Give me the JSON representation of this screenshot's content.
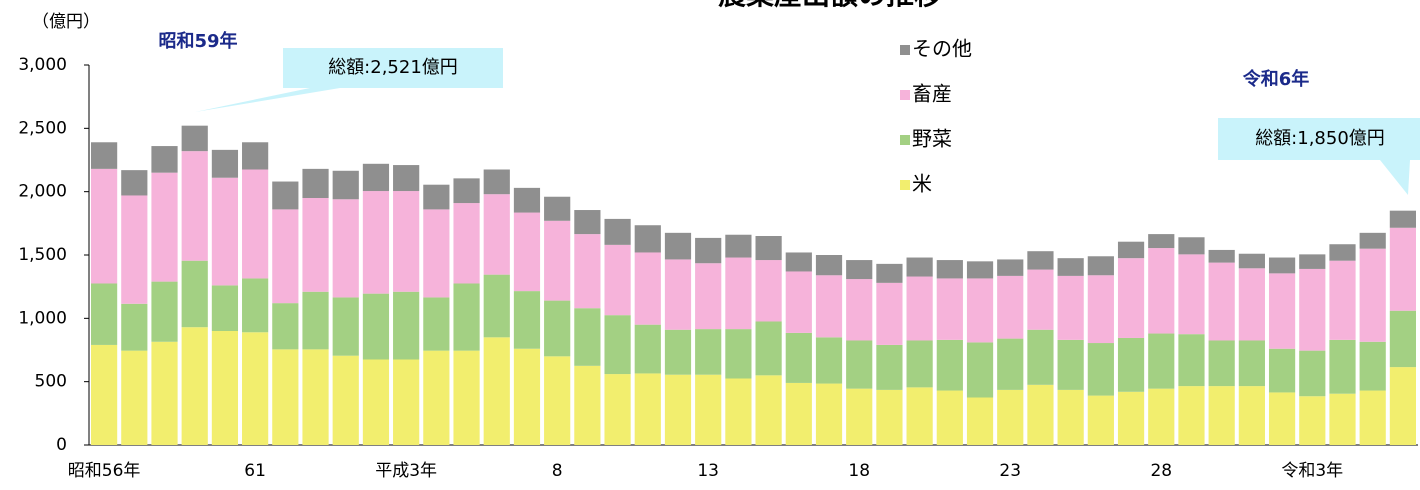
{
  "chart_data": {
    "type": "stacked_bar",
    "title": "農業産出額の推移",
    "y_label": "（億円）",
    "annotations": [
      "昭和59年",
      "総額:2,521億円",
      "令和6年",
      "総額:1,850億円"
    ],
    "categories": [
      "昭和56年",
      null,
      null,
      null,
      null,
      "61",
      null,
      null,
      null,
      null,
      "平成3年",
      null,
      null,
      null,
      null,
      "8",
      null,
      null,
      null,
      null,
      "13",
      null,
      null,
      null,
      null,
      "18",
      null,
      null,
      null,
      null,
      "23",
      null,
      null,
      null,
      null,
      "28",
      null,
      null,
      null,
      null,
      "令和3年",
      null,
      null,
      null
    ],
    "series": [
      {
        "name": "米",
        "color": "#f2ee6e",
        "values": [
          790,
          745,
          815,
          930,
          900,
          890,
          755,
          755,
          705,
          675,
          675,
          745,
          745,
          850,
          760,
          700,
          625,
          560,
          565,
          555,
          555,
          525,
          550,
          490,
          485,
          445,
          435,
          455,
          430,
          375,
          435,
          475,
          435,
          390,
          420,
          445,
          465,
          465,
          465,
          415,
          385,
          405,
          430,
          615
        ]
      },
      {
        "name": "野菜",
        "color": "#a3d083",
        "values": [
          485,
          370,
          475,
          525,
          360,
          425,
          365,
          455,
          460,
          520,
          535,
          420,
          530,
          495,
          455,
          440,
          455,
          465,
          385,
          355,
          360,
          390,
          425,
          395,
          365,
          380,
          355,
          370,
          400,
          435,
          405,
          435,
          395,
          415,
          425,
          435,
          410,
          360,
          360,
          345,
          360,
          425,
          385,
          445
        ]
      },
      {
        "name": "畜産",
        "color": "#f6b3da",
        "values": [
          905,
          855,
          860,
          865,
          850,
          860,
          740,
          740,
          775,
          810,
          795,
          695,
          635,
          635,
          620,
          630,
          585,
          555,
          570,
          555,
          520,
          565,
          485,
          485,
          490,
          485,
          490,
          505,
          485,
          505,
          495,
          475,
          505,
          535,
          630,
          675,
          630,
          615,
          570,
          595,
          645,
          625,
          735,
          655
        ]
      },
      {
        "name": "その他",
        "color": "#8f8f8f",
        "values": [
          210,
          200,
          210,
          201,
          220,
          215,
          220,
          230,
          225,
          215,
          205,
          195,
          195,
          195,
          195,
          190,
          190,
          205,
          215,
          210,
          200,
          180,
          190,
          150,
          160,
          150,
          150,
          150,
          145,
          135,
          130,
          145,
          140,
          150,
          130,
          110,
          135,
          100,
          115,
          125,
          115,
          130,
          125,
          135
        ]
      }
    ],
    "ylim": [
      0,
      3000
    ],
    "yticks": [
      0,
      500,
      {
        "value": 1000,
        "label": "1,000"
      },
      {
        "value": 1500,
        "label": "1,500"
      },
      {
        "value": 2000,
        "label": "2,000"
      },
      {
        "value": 2500,
        "label": "2,500"
      },
      {
        "value": 3000,
        "label": "3,000"
      }
    ],
    "grid": false
  }
}
